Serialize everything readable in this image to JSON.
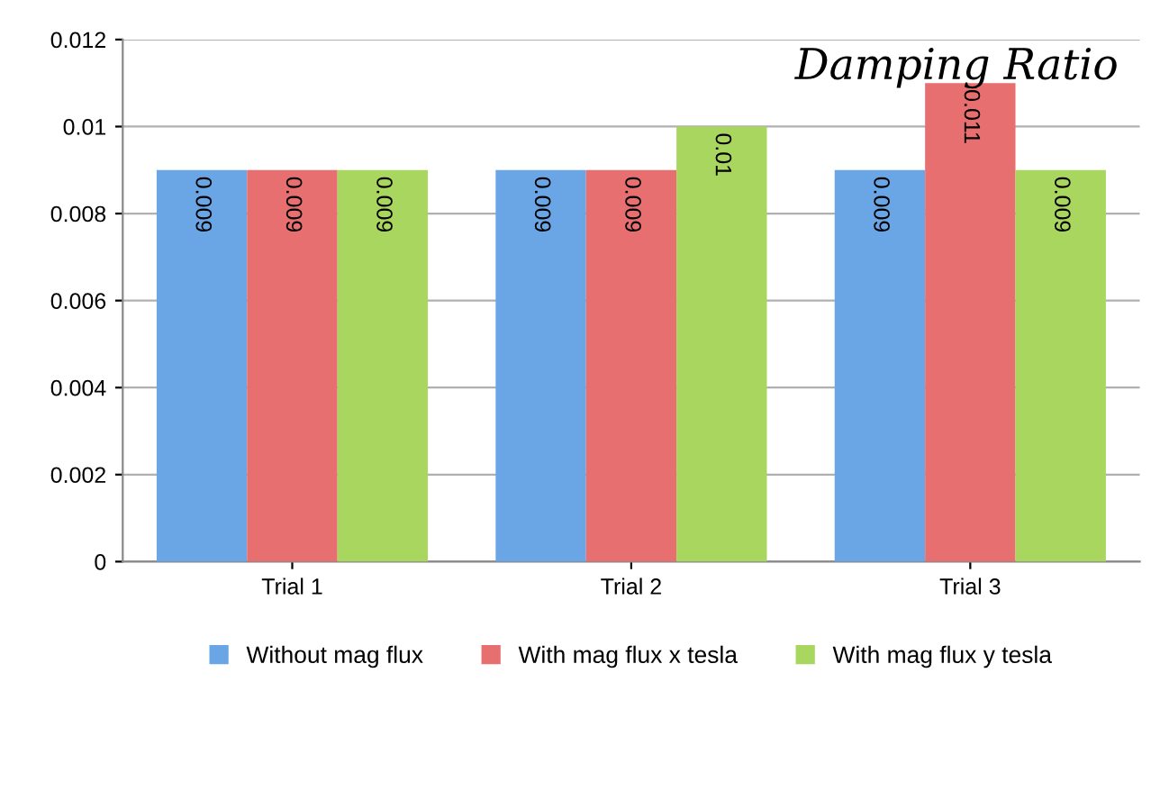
{
  "chart_data": {
    "type": "bar",
    "title": "Damping Ratio",
    "categories": [
      "Trial 1",
      "Trial 2",
      "Trial 3"
    ],
    "series": [
      {
        "name": "Without mag flux",
        "color": "#6aa6e6",
        "values": [
          0.009,
          0.009,
          0.009
        ]
      },
      {
        "name": "With mag flux x tesla",
        "color": "#e86f6f",
        "values": [
          0.009,
          0.009,
          0.011
        ]
      },
      {
        "name": "With mag flux y tesla",
        "color": "#a9d65e",
        "values": [
          0.009,
          0.01,
          0.009
        ]
      }
    ],
    "ylim": [
      0,
      0.012
    ],
    "yticks": [
      0,
      0.002,
      0.004,
      0.006,
      0.008,
      {
        "value": 0.01,
        "label": "0.01"
      },
      0.012
    ],
    "grid": "y",
    "legend": "bottom",
    "data_labels": true
  }
}
